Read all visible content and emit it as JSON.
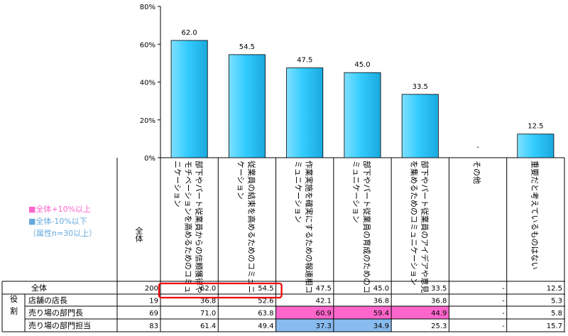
{
  "chart_data": {
    "type": "bar",
    "ylim": [
      0,
      80
    ],
    "yticks": [
      "0%",
      "20%",
      "40%",
      "60%",
      "80%"
    ],
    "categories": [
      "部下やパート従業員からの信頼獲得やモチベーションを高めるためのコミュニケーション",
      "従業員の結束を高めるためのコミュニケーション",
      "作業実施を確実にするための報連相コミュニケーション",
      "部下やパート従業員の育成のためのコミュニケーション",
      "部下やパート従業員のアイデアや意見を集めるためのコミュニケーション",
      "その他",
      "重要だと考えているものはない"
    ],
    "values": [
      62.0,
      54.5,
      47.5,
      45.0,
      33.5,
      null,
      12.5
    ],
    "value_labels": [
      "62.0",
      "54.5",
      "47.5",
      "45.0",
      "33.5",
      "-",
      "12.5"
    ],
    "bar_color": "#33ccff"
  },
  "table": {
    "n_header": "全体",
    "group_label": "役割",
    "rows": [
      {
        "label": "全体",
        "n": "200",
        "cells": [
          "62.0",
          "54.5",
          "47.5",
          "45.0",
          "33.5",
          "-",
          "12.5"
        ],
        "hl": [
          "",
          "",
          "",
          "",
          "",
          "",
          ""
        ]
      },
      {
        "label": "店舗の店長",
        "n": "19",
        "cells": [
          "36.8",
          "52.6",
          "42.1",
          "36.8",
          "36.8",
          "-",
          "5.3"
        ],
        "hl": [
          "",
          "",
          "",
          "",
          "",
          "",
          ""
        ]
      },
      {
        "label": "売り場の部門長",
        "n": "69",
        "cells": [
          "71.0",
          "63.8",
          "60.9",
          "59.4",
          "44.9",
          "-",
          "5.8"
        ],
        "hl": [
          "",
          "",
          "pink",
          "pink",
          "pink",
          "",
          ""
        ]
      },
      {
        "label": "売り場の部門担当",
        "n": "83",
        "cells": [
          "61.4",
          "49.4",
          "37.3",
          "34.9",
          "25.3",
          "-",
          "15.7"
        ],
        "hl": [
          "",
          "",
          "blue",
          "blue",
          "",
          "",
          ""
        ]
      }
    ]
  },
  "legend": {
    "pink_label": "■全体+10%以上",
    "blue_label": "■全体-10%以下",
    "note": "（属性n=30以上）",
    "pink_color": "#ff66cc",
    "blue_color": "#88bbee",
    "pink_text_color": "#ff66cc",
    "blue_text_color": "#66aadd"
  },
  "annotation_color": "#ee0000"
}
